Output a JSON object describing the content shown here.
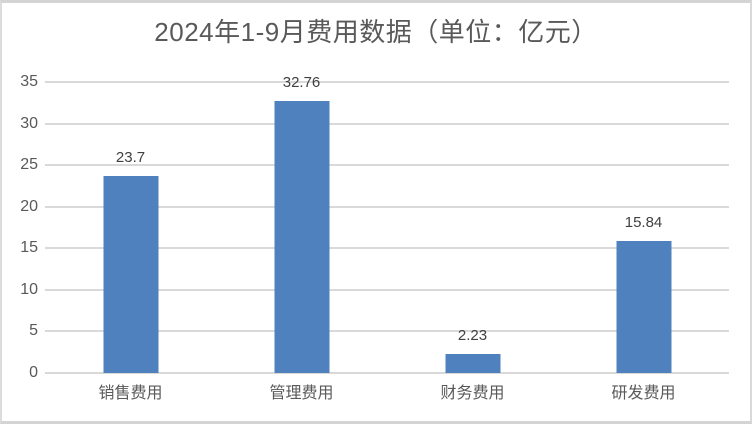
{
  "chart_data": {
    "type": "bar",
    "title": "2024年1-9月费用数据（单位：亿元）",
    "categories": [
      "销售费用",
      "管理费用",
      "财务费用",
      "研发费用"
    ],
    "values": [
      23.7,
      32.76,
      2.23,
      15.84
    ],
    "data_labels": [
      "23.7",
      "32.76",
      "2.23",
      "15.84"
    ],
    "xlabel": "",
    "ylabel": "",
    "ylim": [
      0,
      35
    ],
    "y_ticks": [
      0,
      5,
      10,
      15,
      20,
      25,
      30,
      35
    ],
    "grid": true,
    "legend": "none",
    "colors": {
      "bar": "#4e81bd",
      "gridline": "#d9d9d9",
      "title_text": "#595959",
      "axis_text": "#595959",
      "data_label_text": "#404040",
      "frame_border": "#d4d4d4",
      "background": "#ffffff"
    }
  }
}
